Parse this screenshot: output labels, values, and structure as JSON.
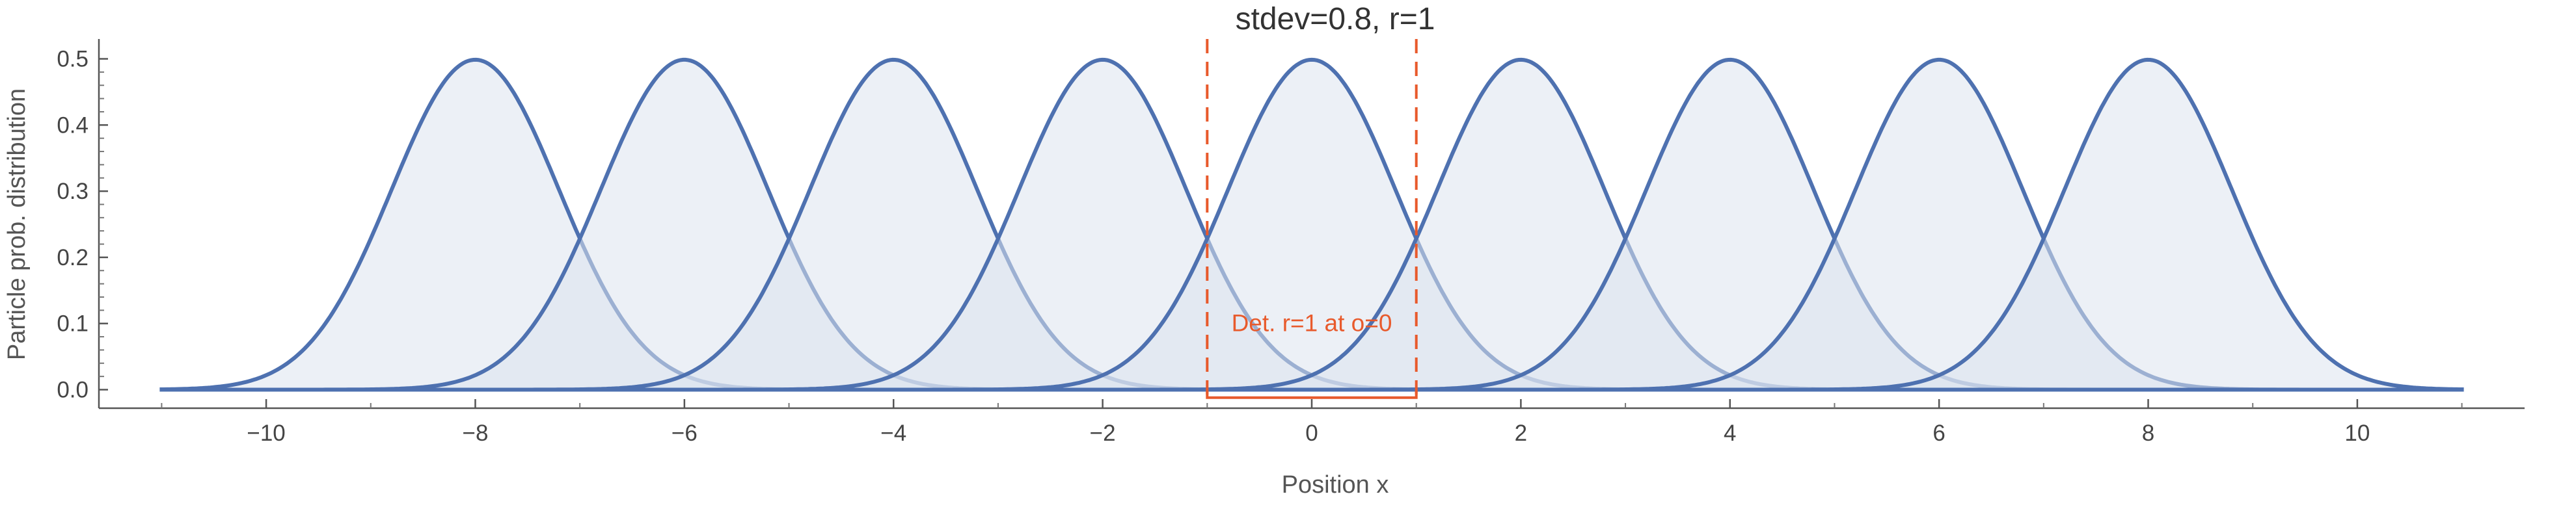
{
  "chart_data": {
    "type": "area",
    "title": "stdev=0.8, r=1",
    "xlabel": "Position x",
    "ylabel": "Particle prob. distribution",
    "xlim": [
      -11.6,
      11.6
    ],
    "ylim": [
      -0.028,
      0.53
    ],
    "x_domain": [
      -11,
      11
    ],
    "x_ticks": [
      -10,
      -8,
      -6,
      -4,
      -2,
      0,
      2,
      4,
      6,
      8,
      10
    ],
    "x_tick_labels": [
      "−10",
      "−8",
      "−6",
      "−4",
      "−2",
      "0",
      "2",
      "4",
      "6",
      "8",
      "10"
    ],
    "y_ticks": [
      0.0,
      0.1,
      0.2,
      0.3,
      0.4,
      0.5
    ],
    "y_tick_labels": [
      "0.0",
      "0.1",
      "0.2",
      "0.3",
      "0.4",
      "0.5"
    ],
    "series": [
      {
        "mean": -8,
        "stdev": 0.8,
        "peak": 0.4987
      },
      {
        "mean": -6,
        "stdev": 0.8,
        "peak": 0.4987
      },
      {
        "mean": -4,
        "stdev": 0.8,
        "peak": 0.4987
      },
      {
        "mean": -2,
        "stdev": 0.8,
        "peak": 0.4987
      },
      {
        "mean": 0,
        "stdev": 0.8,
        "peak": 0.4987
      },
      {
        "mean": 2,
        "stdev": 0.8,
        "peak": 0.4987
      },
      {
        "mean": 4,
        "stdev": 0.8,
        "peak": 0.4987
      },
      {
        "mean": 6,
        "stdev": 0.8,
        "peak": 0.4987
      },
      {
        "mean": 8,
        "stdev": 0.8,
        "peak": 0.4987
      }
    ],
    "detector": {
      "label": "Det. r=1 at o=0",
      "x_min": -1,
      "x_max": 1
    },
    "colors": {
      "curve": "#4e71b0",
      "fill": "#dde4ef",
      "detector": "#e85a2c",
      "axis": "#555555"
    },
    "grid": false,
    "legend": "none"
  }
}
